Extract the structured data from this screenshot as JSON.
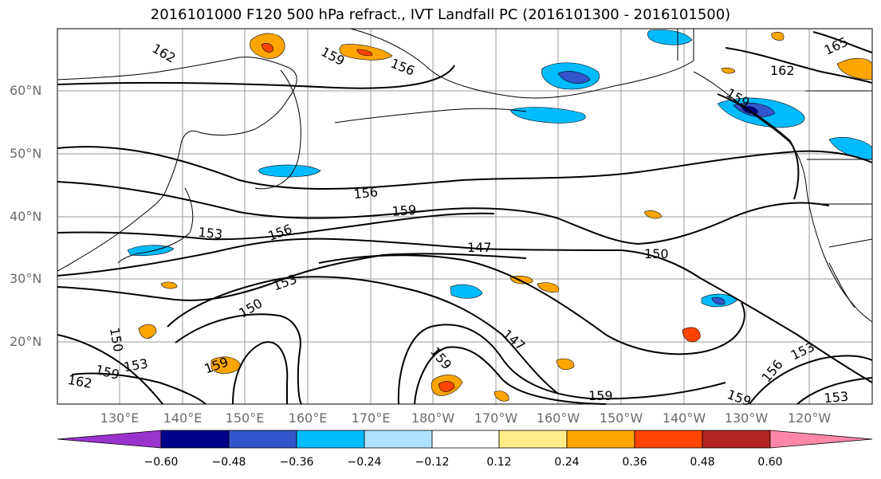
{
  "title": "2016101000 F120 500 hPa refract., IVT Landfall PC (2016101300 - 2016101500)",
  "lat_labels": [
    "60°N",
    "50°N",
    "40°N",
    "30°N",
    "20°N"
  ],
  "lon_labels": [
    "130°E",
    "140°E",
    "150°E",
    "160°E",
    "170°E",
    "180°W",
    "170°W",
    "160°W",
    "150°W",
    "140°W",
    "130°W",
    "120°W"
  ],
  "contour_labels": [
    "162",
    "159",
    "156",
    "165",
    "162",
    "159",
    "156",
    "159",
    "153",
    "156",
    "147",
    "150",
    "153",
    "150",
    "150",
    "147",
    "159",
    "159",
    "153",
    "159",
    "162",
    "159",
    "153",
    "156",
    "159",
    "153"
  ],
  "colorbar": {
    "ticks": [
      "−0.60",
      "−0.48",
      "−0.36",
      "−0.24",
      "−0.12",
      "0.12",
      "0.24",
      "0.36",
      "0.48",
      "0.60"
    ],
    "colors": [
      "#9933cc",
      "#000088",
      "#3355cc",
      "#00bbff",
      "#b0e2ff",
      "#ffffff",
      "#ffee88",
      "#ffa500",
      "#ff4400",
      "#b22222",
      "#ff88aa"
    ]
  }
}
